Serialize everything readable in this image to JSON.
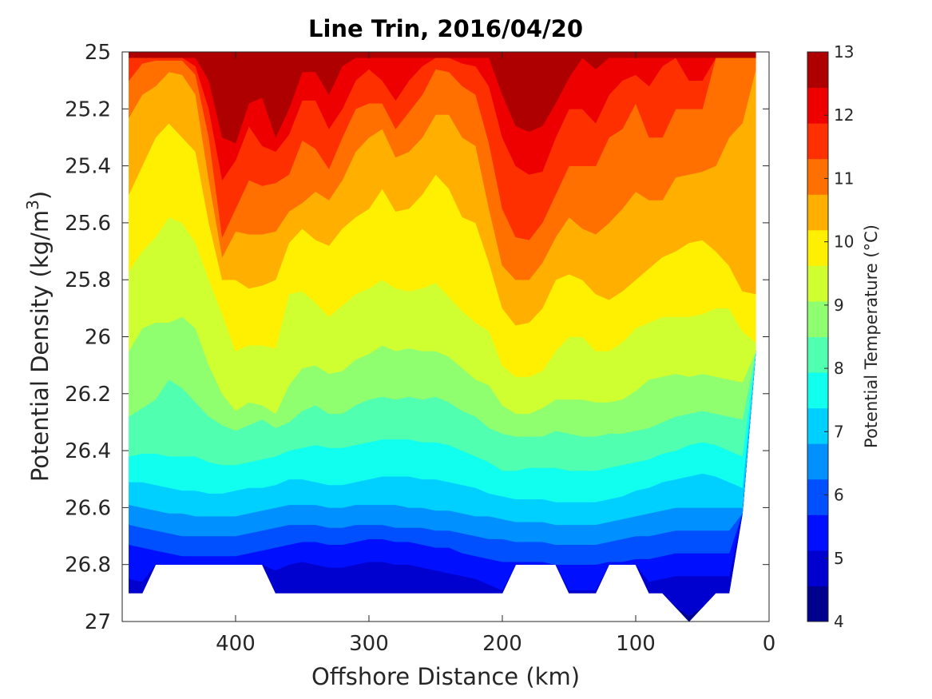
{
  "chart_data": {
    "type": "contourf",
    "title": "Line Trin, 2016/04/20",
    "xlabel": "Offshore Distance (km)",
    "ylabel_prefix": "Potential Density (kg/m",
    "ylabel_sup": "3",
    "ylabel_suffix": ")",
    "xlim": [
      485,
      0
    ],
    "ylim": [
      25,
      27
    ],
    "y_reversed": true,
    "x_ticks": [
      400,
      300,
      200,
      100,
      0
    ],
    "y_ticks": [
      "25",
      "25.2",
      "25.4",
      "25.6",
      "25.8",
      "26",
      "26.2",
      "26.4",
      "26.6",
      "26.8",
      "27"
    ],
    "colorbar": {
      "label": "Potential Temperature (°C)",
      "min": 4,
      "max": 13,
      "step": 0.5,
      "ticks": [
        4,
        5,
        6,
        7,
        8,
        9,
        10,
        11,
        12,
        13
      ],
      "colors": [
        "#00008f",
        "#0000cf",
        "#0010ff",
        "#0050ff",
        "#0090ff",
        "#00d0ff",
        "#10ffef",
        "#50ffaf",
        "#90ff6f",
        "#cfff30",
        "#ffef00",
        "#ffaf00",
        "#ff7000",
        "#ff3000",
        "#ef0000",
        "#af0000"
      ]
    },
    "grid": false,
    "contour_levels_x_km": [
      480,
      470,
      460,
      450,
      440,
      430,
      420,
      410,
      400,
      390,
      380,
      370,
      360,
      350,
      340,
      330,
      320,
      310,
      300,
      290,
      280,
      270,
      260,
      250,
      240,
      230,
      220,
      210,
      200,
      190,
      180,
      170,
      160,
      150,
      140,
      130,
      120,
      110,
      100,
      90,
      80,
      70,
      60,
      50,
      40,
      30,
      20,
      10
    ],
    "isotherm_density": {
      "12.5": [
        25.02,
        25.02,
        25.02,
        25.02,
        25.02,
        25.02,
        25.02,
        25.12,
        25.15,
        25.06,
        25.02,
        25.1,
        25.02,
        25.02,
        25.02,
        25.02,
        25.02,
        25.02,
        25.02,
        25.02,
        25.02,
        25.02,
        25.02,
        25.02,
        25.02,
        25.02,
        25.02,
        25.02,
        25.02,
        25.02,
        25.02,
        25.02,
        25.02,
        25.02,
        25.02,
        25.02,
        25.02,
        25.02,
        25.02,
        25.02,
        25.02,
        25.02,
        25.02,
        25.02,
        25.02,
        25.02,
        25.02,
        25.02
      ],
      "12": [
        25.02,
        25.02,
        25.02,
        25.02,
        25.02,
        25.02,
        25.05,
        25.17,
        25.2,
        25.1,
        25.06,
        25.18,
        25.09,
        25.02,
        25.02,
        25.02,
        25.02,
        25.02,
        25.02,
        25.02,
        25.02,
        25.02,
        25.02,
        25.02,
        25.02,
        25.02,
        25.02,
        25.02,
        25.02,
        25.06,
        25.08,
        25.1,
        25.05,
        25.02,
        25.02,
        25.02,
        25.02,
        25.02,
        25.02,
        25.02,
        25.02,
        25.02,
        25.02,
        25.02,
        25.02,
        25.02,
        25.02,
        25.02
      ],
      "11.5": [
        25.02,
        25.02,
        25.02,
        25.02,
        25.02,
        25.02,
        25.1,
        25.3,
        25.32,
        25.18,
        25.16,
        25.3,
        25.2,
        25.07,
        25.07,
        25.15,
        25.05,
        25.02,
        25.02,
        25.02,
        25.02,
        25.02,
        25.02,
        25.02,
        25.02,
        25.02,
        25.02,
        25.02,
        25.15,
        25.26,
        25.28,
        25.26,
        25.18,
        25.09,
        25.02,
        25.06,
        25.02,
        25.02,
        25.02,
        25.02,
        25.02,
        25.02,
        25.02,
        25.02,
        25.02,
        25.02,
        25.02,
        25.02
      ],
      "11": [
        25.02,
        25.02,
        25.02,
        25.02,
        25.02,
        25.05,
        25.2,
        25.45,
        25.38,
        25.26,
        25.33,
        25.35,
        25.29,
        25.17,
        25.17,
        25.27,
        25.2,
        25.1,
        25.06,
        25.1,
        25.17,
        25.1,
        25.05,
        25.02,
        25.02,
        25.04,
        25.05,
        25.12,
        25.3,
        25.4,
        25.43,
        25.42,
        25.3,
        25.2,
        25.2,
        25.25,
        25.15,
        25.1,
        25.08,
        25.12,
        25.05,
        25.02,
        25.1,
        25.1,
        25.02,
        25.02,
        25.02,
        25.02
      ],
      "10.5": [
        25.1,
        25.04,
        25.03,
        25.03,
        25.03,
        25.08,
        25.3,
        25.65,
        25.55,
        25.45,
        25.47,
        25.46,
        25.43,
        25.31,
        25.34,
        25.41,
        25.3,
        25.2,
        25.18,
        25.18,
        25.27,
        25.21,
        25.15,
        25.06,
        25.07,
        25.12,
        25.15,
        25.32,
        25.55,
        25.65,
        25.66,
        25.6,
        25.5,
        25.4,
        25.4,
        25.4,
        25.3,
        25.27,
        25.18,
        25.3,
        25.3,
        25.2,
        25.2,
        25.2,
        25.02,
        25.02,
        25.02,
        25.02
      ],
      "10": [
        25.23,
        25.15,
        25.12,
        25.07,
        25.08,
        25.15,
        25.45,
        25.72,
        25.63,
        25.64,
        25.64,
        25.63,
        25.56,
        25.53,
        25.49,
        25.52,
        25.45,
        25.35,
        25.3,
        25.27,
        25.37,
        25.35,
        25.3,
        25.22,
        25.22,
        25.3,
        25.33,
        25.55,
        25.75,
        25.8,
        25.8,
        25.74,
        25.65,
        25.58,
        25.62,
        25.64,
        25.6,
        25.55,
        25.49,
        25.52,
        25.52,
        25.44,
        25.43,
        25.42,
        25.4,
        25.3,
        25.25,
        25.06
      ],
      "9.5": [
        25.5,
        25.4,
        25.3,
        25.25,
        25.3,
        25.35,
        25.6,
        25.8,
        25.8,
        25.83,
        25.82,
        25.8,
        25.67,
        25.62,
        25.66,
        25.68,
        25.62,
        25.58,
        25.55,
        25.48,
        25.56,
        25.55,
        25.5,
        25.43,
        25.48,
        25.58,
        25.6,
        25.74,
        25.9,
        25.96,
        25.95,
        25.9,
        25.8,
        25.78,
        25.8,
        25.85,
        25.87,
        25.84,
        25.8,
        25.76,
        25.72,
        25.7,
        25.67,
        25.66,
        25.7,
        25.75,
        25.84,
        25.85
      ],
      "9": [
        25.77,
        25.7,
        25.65,
        25.58,
        25.6,
        25.67,
        25.8,
        25.92,
        26.05,
        26.03,
        26.03,
        26.04,
        25.85,
        25.84,
        25.88,
        25.93,
        25.89,
        25.85,
        25.83,
        25.8,
        25.83,
        25.84,
        25.83,
        25.81,
        25.86,
        25.91,
        25.95,
        25.98,
        26.1,
        26.14,
        26.14,
        26.12,
        26.05,
        26.0,
        26.0,
        26.05,
        26.05,
        26.02,
        25.97,
        25.95,
        25.93,
        25.93,
        25.93,
        25.92,
        25.9,
        25.9,
        25.98,
        26.02
      ],
      "8.5": [
        26.05,
        25.97,
        25.95,
        25.95,
        25.93,
        25.97,
        26.1,
        26.2,
        26.26,
        26.23,
        26.24,
        26.27,
        26.17,
        26.11,
        26.1,
        26.13,
        26.12,
        26.08,
        26.06,
        26.03,
        26.05,
        26.04,
        26.05,
        26.05,
        26.07,
        26.11,
        26.15,
        26.17,
        26.24,
        26.27,
        26.27,
        26.25,
        26.22,
        26.22,
        26.22,
        26.23,
        26.23,
        26.22,
        26.19,
        26.15,
        26.14,
        26.13,
        26.14,
        26.13,
        26.14,
        26.15,
        26.16,
        26.18
      ],
      "8": [
        26.28,
        26.25,
        26.22,
        26.15,
        26.18,
        26.23,
        26.28,
        26.31,
        26.33,
        26.31,
        26.29,
        26.32,
        26.3,
        26.26,
        26.24,
        26.27,
        26.27,
        26.24,
        26.22,
        26.21,
        26.22,
        26.21,
        26.22,
        26.21,
        26.23,
        26.26,
        26.28,
        26.32,
        26.34,
        26.35,
        26.35,
        26.35,
        26.33,
        26.34,
        26.35,
        26.35,
        26.34,
        26.34,
        26.33,
        26.32,
        26.3,
        26.28,
        26.27,
        26.26,
        26.27,
        26.28,
        26.29,
        26.3
      ],
      "7.5": [
        26.42,
        26.41,
        26.41,
        26.42,
        26.42,
        26.42,
        26.44,
        26.45,
        26.45,
        26.44,
        26.43,
        26.42,
        26.4,
        26.39,
        26.38,
        26.39,
        26.39,
        26.38,
        26.37,
        26.36,
        26.36,
        26.36,
        26.37,
        26.37,
        26.38,
        26.4,
        26.42,
        26.44,
        26.47,
        26.47,
        26.46,
        26.46,
        26.46,
        26.47,
        26.47,
        26.47,
        26.46,
        26.45,
        26.44,
        26.43,
        26.41,
        26.4,
        26.38,
        26.37,
        26.38,
        26.4,
        26.42,
        26.44
      ],
      "7": [
        26.51,
        26.51,
        26.52,
        26.53,
        26.54,
        26.54,
        26.55,
        26.55,
        26.54,
        26.53,
        26.53,
        26.52,
        26.5,
        26.5,
        26.51,
        26.52,
        26.52,
        26.51,
        26.5,
        26.49,
        26.49,
        26.49,
        26.5,
        26.5,
        26.51,
        26.52,
        26.53,
        26.55,
        26.56,
        26.57,
        26.57,
        26.57,
        26.58,
        26.58,
        26.58,
        26.58,
        26.57,
        26.56,
        26.54,
        26.53,
        26.51,
        26.5,
        26.49,
        26.48,
        26.49,
        26.51,
        26.53,
        26.55
      ],
      "6.5": [
        26.59,
        26.6,
        26.61,
        26.62,
        26.62,
        26.63,
        26.63,
        26.63,
        26.63,
        26.62,
        26.61,
        26.6,
        26.59,
        26.59,
        26.59,
        26.6,
        26.6,
        26.59,
        26.59,
        26.59,
        26.59,
        26.6,
        26.6,
        26.61,
        26.61,
        26.62,
        26.63,
        26.63,
        26.64,
        26.65,
        26.65,
        26.65,
        26.66,
        26.66,
        26.66,
        26.66,
        26.65,
        26.64,
        26.63,
        26.62,
        26.61,
        26.6,
        26.6,
        26.6,
        26.6,
        26.6,
        26.6,
        26.6
      ],
      "6": [
        26.66,
        26.67,
        26.68,
        26.69,
        26.7,
        26.7,
        26.7,
        26.7,
        26.7,
        26.69,
        26.68,
        26.67,
        26.66,
        26.66,
        26.66,
        26.67,
        26.67,
        26.66,
        26.66,
        26.66,
        26.67,
        26.67,
        26.67,
        26.68,
        26.68,
        26.69,
        26.7,
        26.71,
        26.71,
        26.72,
        26.72,
        26.72,
        26.73,
        26.73,
        26.73,
        26.73,
        26.72,
        26.71,
        26.7,
        26.7,
        26.69,
        26.68,
        26.68,
        26.68,
        26.68,
        26.68,
        26.68,
        26.68
      ],
      "5.5": [
        26.73,
        26.74,
        26.75,
        26.76,
        26.77,
        26.77,
        26.77,
        26.77,
        26.77,
        26.76,
        26.75,
        26.74,
        26.73,
        26.72,
        26.72,
        26.73,
        26.73,
        26.72,
        26.71,
        26.71,
        26.72,
        26.72,
        26.73,
        26.74,
        26.74,
        26.76,
        26.77,
        26.78,
        26.79,
        26.79,
        26.79,
        26.79,
        26.8,
        26.8,
        26.8,
        26.8,
        26.79,
        26.79,
        26.78,
        26.78,
        26.77,
        26.76,
        26.76,
        26.76,
        26.76,
        26.76,
        26.76,
        26.76
      ],
      "5": [
        26.85,
        26.86,
        26.87,
        26.88,
        26.88,
        26.88,
        26.88,
        26.88,
        26.87,
        26.86,
        26.84,
        26.82,
        26.8,
        26.79,
        26.8,
        26.81,
        26.81,
        26.8,
        26.79,
        26.79,
        26.8,
        26.8,
        26.81,
        26.82,
        26.83,
        26.84,
        26.85,
        26.87,
        26.89,
        26.89,
        26.88,
        26.88,
        26.89,
        26.89,
        26.89,
        26.89,
        26.88,
        26.87,
        26.86,
        26.86,
        26.85,
        26.84,
        26.84,
        26.84,
        26.84,
        26.84,
        26.84,
        26.84
      ],
      "4.5": [
        26.98,
        26.98,
        26.98,
        26.98,
        26.98,
        26.98,
        26.98,
        26.98,
        26.98,
        26.98,
        26.98,
        26.98,
        26.98,
        26.98,
        26.98,
        26.98,
        26.98,
        26.98,
        26.98,
        26.98,
        26.98,
        26.98,
        26.98,
        26.98,
        26.98,
        26.98,
        26.98,
        26.98,
        26.98,
        26.98,
        26.98,
        26.98,
        26.98,
        26.98,
        26.98,
        26.98,
        26.98,
        26.98,
        26.98,
        26.98,
        26.98,
        26.98,
        26.98,
        26.98,
        26.98,
        26.98,
        26.98,
        26.98
      ]
    },
    "data_mask_bottom_density": [
      26.9,
      26.9,
      26.8,
      26.8,
      26.8,
      26.8,
      26.8,
      26.8,
      26.8,
      26.8,
      26.8,
      26.9,
      26.9,
      26.9,
      26.9,
      26.9,
      26.9,
      26.9,
      26.9,
      26.9,
      26.9,
      26.9,
      26.9,
      26.9,
      26.9,
      26.9,
      26.9,
      26.9,
      26.9,
      26.8,
      26.8,
      26.8,
      26.8,
      26.9,
      26.9,
      26.9,
      26.8,
      26.8,
      26.8,
      26.9,
      26.9,
      26.95,
      27.0,
      26.95,
      26.9,
      26.9,
      26.62,
      26.05
    ]
  }
}
